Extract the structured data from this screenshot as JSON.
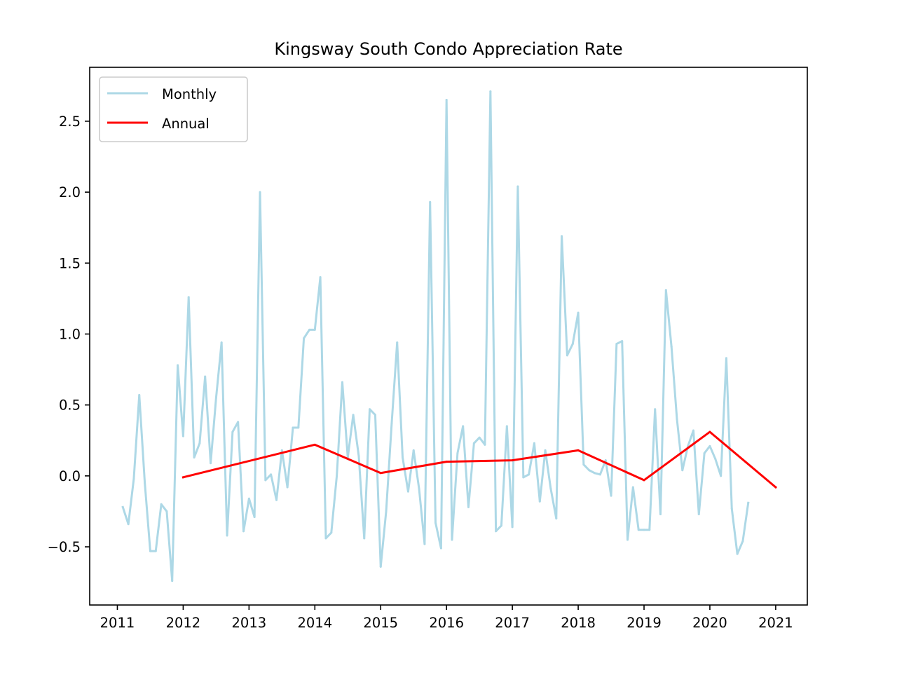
{
  "chart_data": {
    "type": "line",
    "title": "Kingsway South Condo Appreciation Rate",
    "xlabel": "",
    "ylabel": "",
    "xlim": [
      2010.58,
      2021.48
    ],
    "ylim": [
      -0.91,
      2.88
    ],
    "x_ticks": [
      2011,
      2012,
      2013,
      2014,
      2015,
      2016,
      2017,
      2018,
      2019,
      2020,
      2021
    ],
    "y_ticks": [
      -0.5,
      0.0,
      0.5,
      1.0,
      1.5,
      2.0,
      2.5
    ],
    "y_tick_labels": [
      "−0.5",
      "0.0",
      "0.5",
      "1.0",
      "1.5",
      "2.0",
      "2.5"
    ],
    "grid": false,
    "legend_position": "top-left",
    "series": [
      {
        "name": "Monthly",
        "color": "#add8e6",
        "x": [
          2011.083,
          2011.167,
          2011.25,
          2011.333,
          2011.417,
          2011.5,
          2011.583,
          2011.667,
          2011.75,
          2011.833,
          2011.917,
          2012.0,
          2012.083,
          2012.167,
          2012.25,
          2012.333,
          2012.417,
          2012.5,
          2012.583,
          2012.667,
          2012.75,
          2012.833,
          2012.917,
          2013.0,
          2013.083,
          2013.167,
          2013.25,
          2013.333,
          2013.417,
          2013.5,
          2013.583,
          2013.667,
          2013.75,
          2013.833,
          2013.917,
          2014.0,
          2014.083,
          2014.167,
          2014.25,
          2014.333,
          2014.417,
          2014.5,
          2014.583,
          2014.667,
          2014.75,
          2014.833,
          2014.917,
          2015.0,
          2015.083,
          2015.167,
          2015.25,
          2015.333,
          2015.417,
          2015.5,
          2015.583,
          2015.667,
          2015.75,
          2015.833,
          2015.917,
          2016.0,
          2016.083,
          2016.167,
          2016.25,
          2016.333,
          2016.417,
          2016.5,
          2016.583,
          2016.667,
          2016.75,
          2016.833,
          2016.917,
          2017.0,
          2017.083,
          2017.167,
          2017.25,
          2017.333,
          2017.417,
          2017.5,
          2017.583,
          2017.667,
          2017.75,
          2017.833,
          2017.917,
          2018.0,
          2018.083,
          2018.167,
          2018.25,
          2018.333,
          2018.417,
          2018.5,
          2018.583,
          2018.667,
          2018.75,
          2018.833,
          2018.917,
          2019.0,
          2019.083,
          2019.167,
          2019.25,
          2019.333,
          2019.417,
          2019.5,
          2019.583,
          2019.667,
          2019.75,
          2019.833,
          2019.917,
          2020.0,
          2020.083,
          2020.167,
          2020.25,
          2020.333,
          2020.417,
          2020.5,
          2020.583
        ],
        "values": [
          -0.22,
          -0.34,
          -0.02,
          0.57,
          -0.05,
          -0.53,
          -0.53,
          -0.2,
          -0.25,
          -0.74,
          0.78,
          0.28,
          1.26,
          0.13,
          0.23,
          0.7,
          0.09,
          0.55,
          0.94,
          -0.42,
          0.31,
          0.38,
          -0.39,
          -0.16,
          -0.29,
          2.0,
          -0.03,
          0.01,
          -0.17,
          0.18,
          -0.08,
          0.34,
          0.34,
          0.97,
          1.03,
          1.03,
          1.4,
          -0.44,
          -0.4,
          0.0,
          0.66,
          0.13,
          0.43,
          0.14,
          -0.44,
          0.47,
          0.43,
          -0.64,
          -0.25,
          0.37,
          0.94,
          0.13,
          -0.11,
          0.18,
          -0.09,
          -0.48,
          1.93,
          -0.33,
          -0.51,
          2.65,
          -0.45,
          0.16,
          0.35,
          -0.22,
          0.23,
          0.27,
          0.22,
          2.71,
          -0.39,
          -0.35,
          0.35,
          -0.36,
          2.04,
          -0.01,
          0.01,
          0.23,
          -0.18,
          0.18,
          -0.09,
          -0.3,
          1.69,
          0.85,
          0.93,
          1.15,
          0.08,
          0.04,
          0.02,
          0.01,
          0.11,
          -0.14,
          0.93,
          0.95,
          -0.45,
          -0.08,
          -0.38,
          -0.38,
          -0.38,
          0.47,
          -0.27,
          1.31,
          0.91,
          0.4,
          0.04,
          0.21,
          0.32,
          -0.27,
          0.16,
          0.21,
          0.12,
          0.0,
          0.83,
          -0.23,
          -0.55,
          -0.46,
          -0.19
        ]
      },
      {
        "name": "Annual",
        "color": "#ff0000",
        "x": [
          2012,
          2014,
          2015,
          2016,
          2017,
          2018,
          2019,
          2020,
          2021
        ],
        "values": [
          -0.01,
          0.22,
          0.02,
          0.1,
          0.11,
          0.18,
          -0.03,
          0.31,
          -0.08
        ]
      }
    ]
  }
}
